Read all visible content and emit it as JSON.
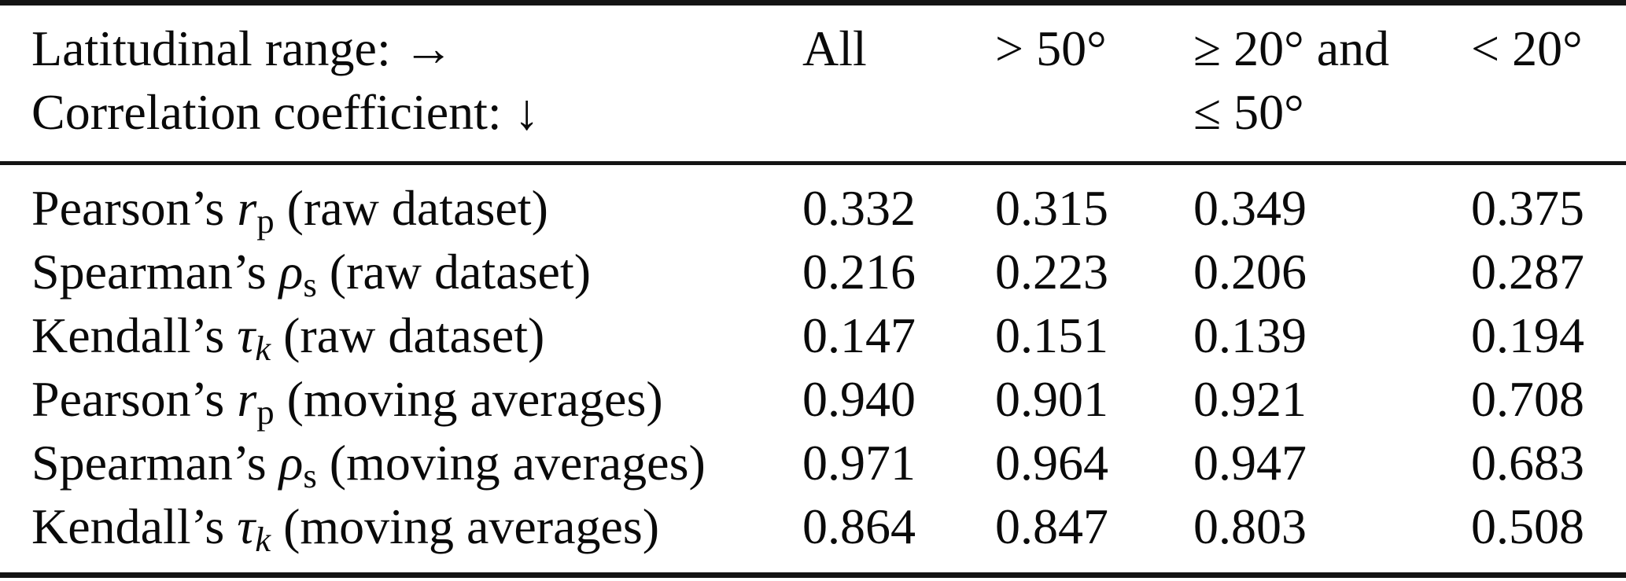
{
  "table": {
    "header": {
      "row_axis_label": "Latitudinal range: →",
      "col_axis_label": "Correlation coefficient: ↓",
      "columns": [
        {
          "line1": "All",
          "line2": ""
        },
        {
          "line1": "> 50°",
          "line2": ""
        },
        {
          "line1": "≥ 20° and",
          "line2": "≤ 50°"
        },
        {
          "line1": "< 20°",
          "line2": ""
        }
      ]
    },
    "rows": [
      {
        "label": {
          "prefix": "Pearson’s ",
          "symbol": "r",
          "subscript": "p",
          "suffix": " (raw dataset)"
        },
        "values": [
          "0.332",
          "0.315",
          "0.349",
          "0.375"
        ]
      },
      {
        "label": {
          "prefix": "Spearman’s ",
          "symbol": "ρ",
          "subscript": "s",
          "suffix": " (raw dataset)"
        },
        "values": [
          "0.216",
          "0.223",
          "0.206",
          "0.287"
        ]
      },
      {
        "label": {
          "prefix": "Kendall’s ",
          "symbol": "τ",
          "subscript": "k",
          "suffix": " (raw dataset)"
        },
        "values": [
          "0.147",
          "0.151",
          "0.139",
          "0.194"
        ]
      },
      {
        "label": {
          "prefix": "Pearson’s ",
          "symbol": "r",
          "subscript": "p",
          "suffix": " (moving averages)"
        },
        "values": [
          "0.940",
          "0.901",
          "0.921",
          "0.708"
        ]
      },
      {
        "label": {
          "prefix": "Spearman’s ",
          "symbol": "ρ",
          "subscript": "s",
          "suffix": " (moving averages)"
        },
        "values": [
          "0.971",
          "0.964",
          "0.947",
          "0.683"
        ]
      },
      {
        "label": {
          "prefix": "Kendall’s ",
          "symbol": "τ",
          "subscript": "k",
          "suffix": " (moving averages)"
        },
        "values": [
          "0.864",
          "0.847",
          "0.803",
          "0.508"
        ]
      }
    ],
    "colors": {
      "text": "#0a0a0a",
      "rule": "#141414",
      "background": "#ffffff"
    }
  }
}
